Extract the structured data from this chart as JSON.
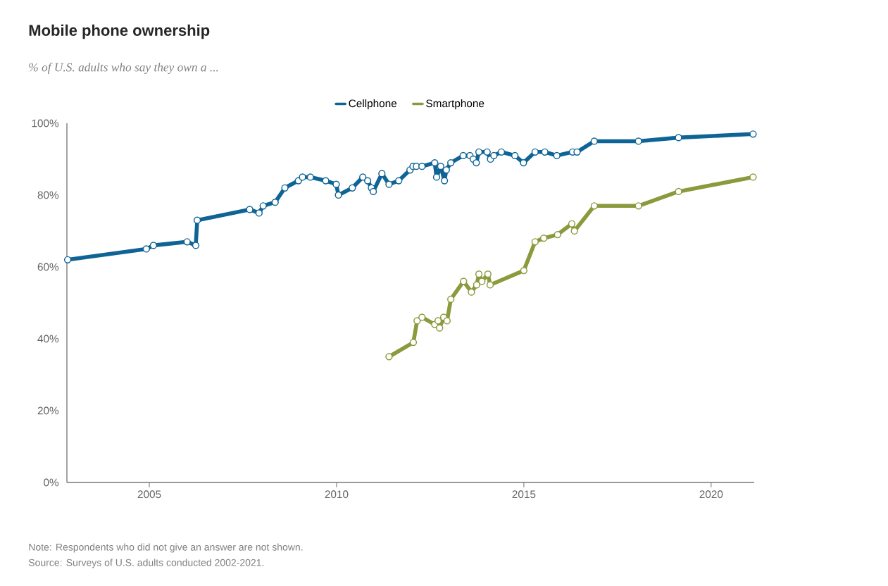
{
  "chart_data": {
    "type": "line",
    "title": "Mobile phone ownership",
    "subtitle": "% of U.S. adults who say they own a ...",
    "annotations": [
      "Note: Respondents who did not give an answer are not shown.",
      "Source: Surveys of U.S. adults conducted 2002-2021."
    ],
    "xlim": [
      2002.8,
      2021.15
    ],
    "xticks": [
      2005,
      2010,
      2015,
      2020
    ],
    "ylim": [
      0,
      100
    ],
    "yticks": [
      {
        "value": 0,
        "label": "0%"
      },
      {
        "value": 20,
        "label": "20%"
      },
      {
        "value": 40,
        "label": "40%"
      },
      {
        "value": 60,
        "label": "60%"
      },
      {
        "value": 80,
        "label": "80%"
      },
      {
        "value": 100,
        "label": "100%"
      }
    ],
    "legend": "top",
    "marker": "circle",
    "line_style": "solid",
    "series": [
      {
        "name": "Cellphone",
        "color": "#0f6496",
        "x": [
          2002.82,
          2004.92,
          2005.11,
          2006.01,
          2006.24,
          2006.28,
          2007.68,
          2007.93,
          2008.04,
          2008.36,
          2008.62,
          2008.98,
          2009.09,
          2009.3,
          2009.71,
          2009.99,
          2010.05,
          2010.42,
          2010.7,
          2010.83,
          2010.93,
          2010.98,
          2011.21,
          2011.4,
          2011.66,
          2011.96,
          2012.04,
          2012.13,
          2012.28,
          2012.62,
          2012.67,
          2012.78,
          2012.88,
          2012.93,
          2013.05,
          2013.38,
          2013.56,
          2013.65,
          2013.73,
          2013.8,
          2014.02,
          2014.11,
          2014.2,
          2014.4,
          2014.76,
          2014.99,
          2015.3,
          2015.56,
          2015.88,
          2016.3,
          2016.42,
          2016.88,
          2018.06,
          2019.13,
          2021.12
        ],
        "values": [
          62,
          65,
          66,
          67,
          66,
          73,
          76,
          75,
          77,
          78,
          82,
          84,
          85,
          85,
          84,
          83,
          80,
          82,
          85,
          84,
          82,
          81,
          86,
          83,
          84,
          87,
          88,
          88,
          88,
          89,
          85,
          88,
          84,
          87,
          89,
          91,
          91,
          90,
          89,
          92,
          92,
          90,
          91,
          92,
          91,
          89,
          92,
          92,
          91,
          92,
          92,
          95,
          95,
          96,
          97
        ]
      },
      {
        "name": "Smartphone",
        "color": "#8a9a3d",
        "x": [
          2011.4,
          2012.05,
          2012.15,
          2012.28,
          2012.62,
          2012.71,
          2012.75,
          2012.86,
          2012.95,
          2013.05,
          2013.39,
          2013.6,
          2013.74,
          2013.8,
          2013.88,
          2014.04,
          2014.1,
          2015.0,
          2015.3,
          2015.53,
          2015.9,
          2016.28,
          2016.35,
          2016.88,
          2018.06,
          2019.13,
          2021.12
        ],
        "values": [
          35,
          39,
          45,
          46,
          44,
          45,
          43,
          46,
          45,
          51,
          56,
          53,
          55,
          58,
          56,
          58,
          55,
          59,
          67,
          68,
          69,
          72,
          70,
          77,
          77,
          81,
          85
        ]
      }
    ]
  }
}
